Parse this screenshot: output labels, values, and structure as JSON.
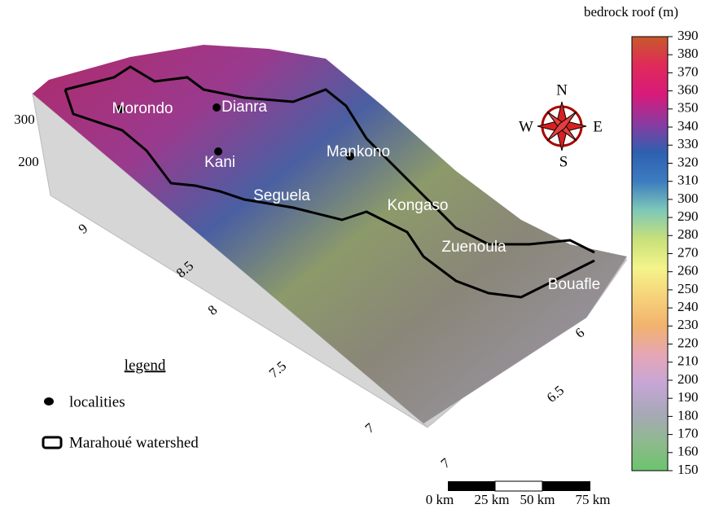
{
  "map": {
    "colorbar": {
      "title": "bedrock roof (m)",
      "range": [
        150,
        390
      ],
      "ticks": [
        150,
        160,
        170,
        180,
        190,
        200,
        210,
        220,
        230,
        240,
        250,
        260,
        270,
        280,
        290,
        300,
        310,
        320,
        330,
        340,
        350,
        360,
        370,
        380,
        390
      ],
      "colors": [
        "#6cc46c",
        "#8fb98f",
        "#a8a8b8",
        "#c6a6d6",
        "#e6a6b6",
        "#f2b26e",
        "#f6d27a",
        "#f4f48a",
        "#c8e07a",
        "#7ec8b8",
        "#3c7cc0",
        "#2e60b0",
        "#8a3aa0",
        "#d81a7a",
        "#e02a5a",
        "#c85a2a"
      ]
    },
    "z_axis": {
      "ticks": [
        300,
        200
      ]
    },
    "lat_axis": {
      "ticks": [
        9,
        8.5,
        8,
        7.5,
        7
      ]
    },
    "lon_axis": {
      "ticks": [
        6,
        6.5,
        7
      ]
    },
    "localities": [
      "Morondo",
      "Dianra",
      "Kani",
      "Mankono",
      "Seguela",
      "Kongaso",
      "Zuenoula",
      "Bouafle"
    ],
    "compass": {
      "north": "N",
      "south": "S",
      "west": "W",
      "east": "E"
    },
    "legend": {
      "title": "legend",
      "items": [
        "localities",
        "Marahoué watershed"
      ]
    },
    "scale_bar": {
      "labels": [
        "0 km",
        "25 km",
        "50 km",
        "75 km"
      ]
    }
  }
}
